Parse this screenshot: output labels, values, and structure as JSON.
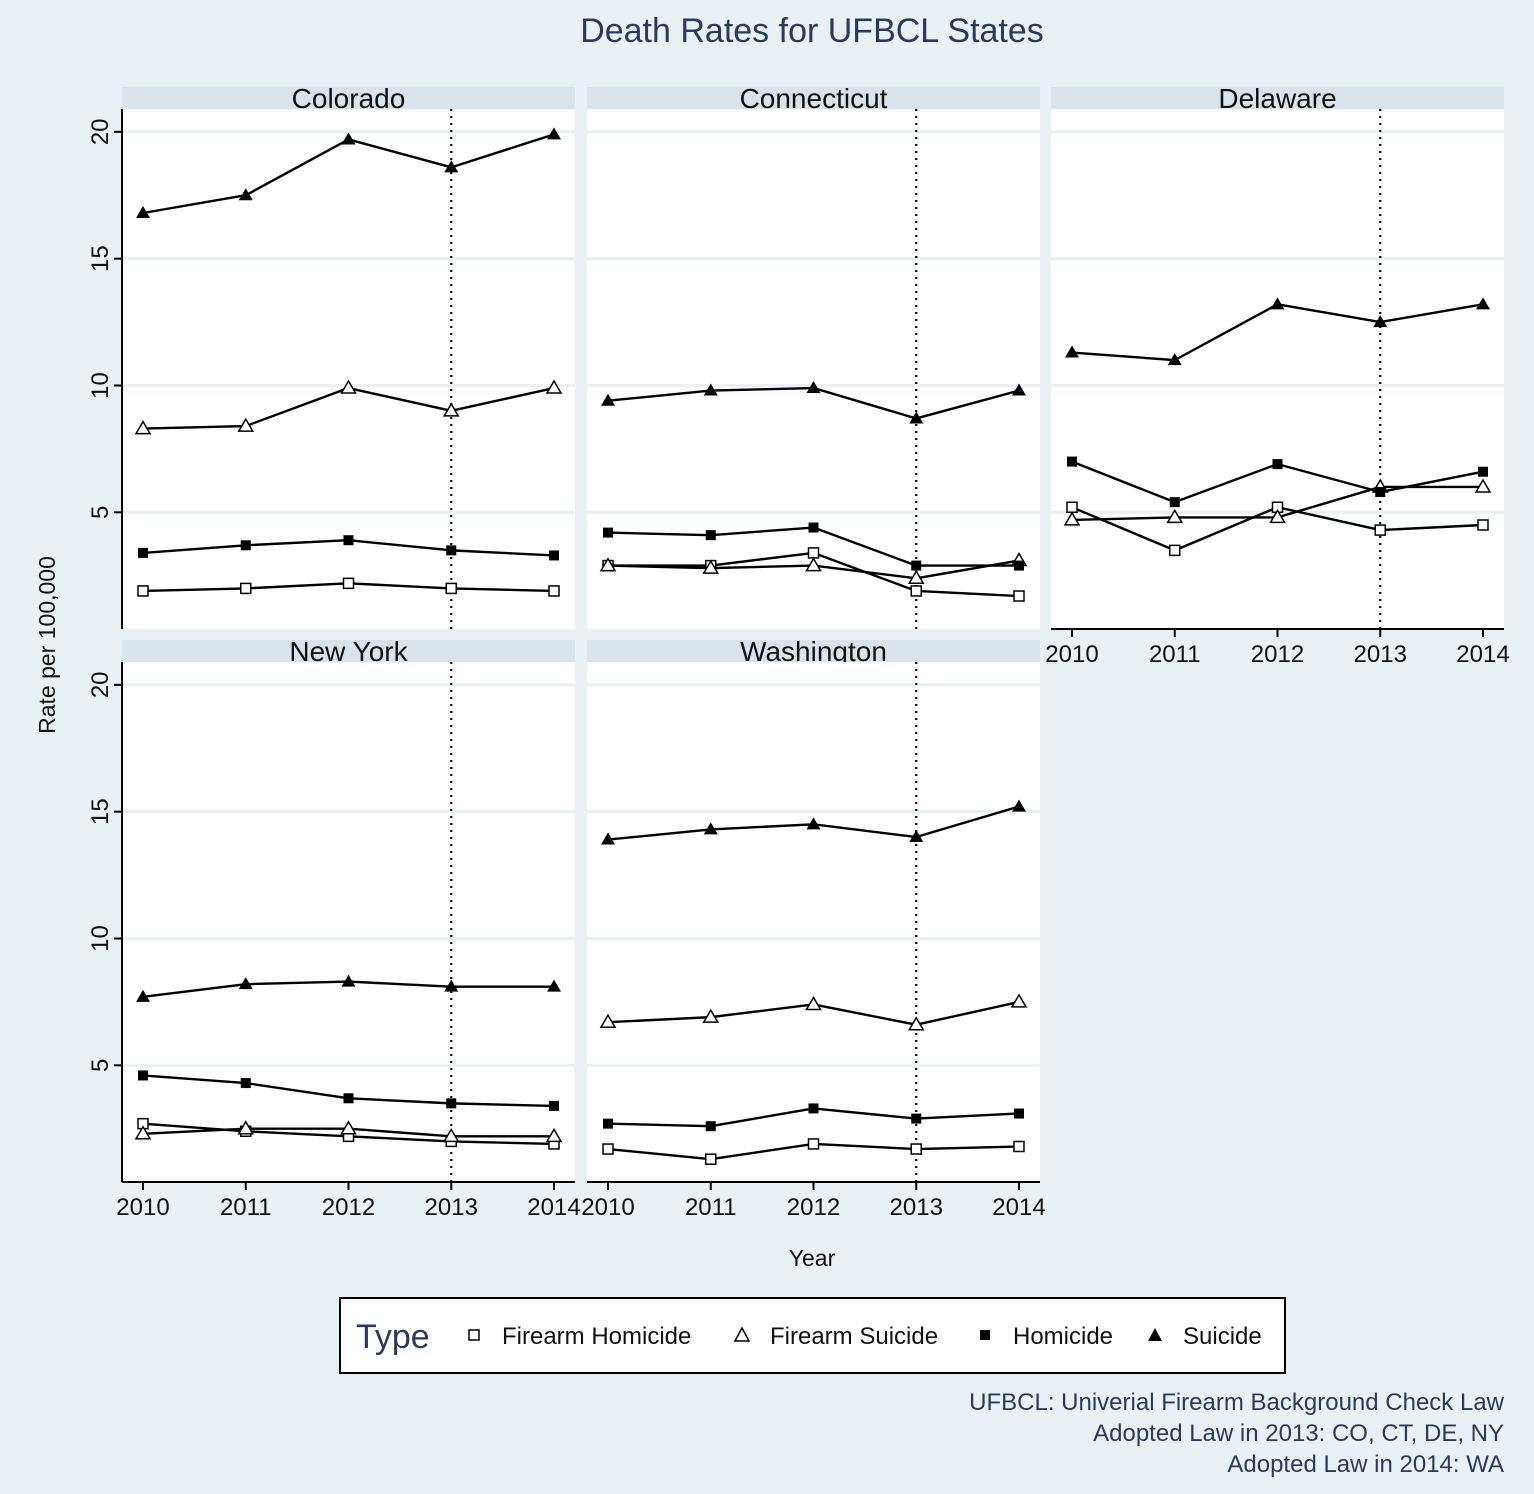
{
  "chart_data": {
    "type": "line",
    "title": "Death Rates for UFBCL States",
    "xlabel": "Year",
    "ylabel": "Rate per 100,000",
    "x": [
      2010,
      2011,
      2012,
      2013,
      2014
    ],
    "x_ticks": [
      "2010",
      "2011",
      "2012",
      "2013",
      "2014"
    ],
    "y_ticks": [
      "5",
      "10",
      "15",
      "20"
    ],
    "ylim": [
      0.4,
      20.9
    ],
    "grid": true,
    "reference_line_x": 2013,
    "legend": {
      "title": "Type",
      "position": "bottom",
      "items": [
        "Firearm Homicide",
        "Firearm Suicide",
        "Homicide",
        "Suicide"
      ]
    },
    "panels": [
      {
        "name": "Colorado",
        "series": [
          {
            "name": "Firearm Homicide",
            "marker": "hollow-square",
            "values": [
              1.9,
              2.0,
              2.2,
              2.0,
              1.9
            ]
          },
          {
            "name": "Firearm Suicide",
            "marker": "hollow-triangle",
            "values": [
              8.3,
              8.4,
              9.9,
              9.0,
              9.9
            ]
          },
          {
            "name": "Homicide",
            "marker": "filled-square",
            "values": [
              3.4,
              3.7,
              3.9,
              3.5,
              3.3
            ]
          },
          {
            "name": "Suicide",
            "marker": "filled-triangle",
            "values": [
              16.8,
              17.5,
              19.7,
              18.6,
              19.9
            ]
          }
        ]
      },
      {
        "name": "Connecticut",
        "series": [
          {
            "name": "Firearm Homicide",
            "marker": "hollow-square",
            "values": [
              2.9,
              2.9,
              3.4,
              1.9,
              1.7
            ]
          },
          {
            "name": "Firearm Suicide",
            "marker": "hollow-triangle",
            "values": [
              2.9,
              2.8,
              2.9,
              2.4,
              3.1
            ]
          },
          {
            "name": "Homicide",
            "marker": "filled-square",
            "values": [
              4.2,
              4.1,
              4.4,
              2.9,
              2.9
            ]
          },
          {
            "name": "Suicide",
            "marker": "filled-triangle",
            "values": [
              9.4,
              9.8,
              9.9,
              8.7,
              9.8
            ]
          }
        ]
      },
      {
        "name": "Delaware",
        "series": [
          {
            "name": "Firearm Homicide",
            "marker": "hollow-square",
            "values": [
              5.2,
              3.5,
              5.2,
              4.3,
              4.5
            ]
          },
          {
            "name": "Firearm Suicide",
            "marker": "hollow-triangle",
            "values": [
              4.7,
              4.8,
              4.8,
              6.0,
              6.0
            ]
          },
          {
            "name": "Homicide",
            "marker": "filled-square",
            "values": [
              7.0,
              5.4,
              6.9,
              5.8,
              6.6
            ]
          },
          {
            "name": "Suicide",
            "marker": "filled-triangle",
            "values": [
              11.3,
              11.0,
              13.2,
              12.5,
              13.2
            ]
          }
        ]
      },
      {
        "name": "New York",
        "series": [
          {
            "name": "Firearm Homicide",
            "marker": "hollow-square",
            "values": [
              2.7,
              2.4,
              2.2,
              2.0,
              1.9
            ]
          },
          {
            "name": "Firearm Suicide",
            "marker": "hollow-triangle",
            "values": [
              2.3,
              2.5,
              2.5,
              2.2,
              2.2
            ]
          },
          {
            "name": "Homicide",
            "marker": "filled-square",
            "values": [
              4.6,
              4.3,
              3.7,
              3.5,
              3.4
            ]
          },
          {
            "name": "Suicide",
            "marker": "filled-triangle",
            "values": [
              7.7,
              8.2,
              8.3,
              8.1,
              8.1
            ]
          }
        ]
      },
      {
        "name": "Washington",
        "series": [
          {
            "name": "Firearm Homicide",
            "marker": "hollow-square",
            "values": [
              1.7,
              1.3,
              1.9,
              1.7,
              1.8
            ]
          },
          {
            "name": "Firearm Suicide",
            "marker": "hollow-triangle",
            "values": [
              6.7,
              6.9,
              7.4,
              6.6,
              7.5
            ]
          },
          {
            "name": "Homicide",
            "marker": "filled-square",
            "values": [
              2.7,
              2.6,
              3.3,
              2.9,
              3.1
            ]
          },
          {
            "name": "Suicide",
            "marker": "filled-triangle",
            "values": [
              13.9,
              14.3,
              14.5,
              14.0,
              15.2
            ]
          }
        ]
      }
    ],
    "notes": [
      "UFBCL: Univerial Firearm Background Check Law",
      "Adopted Law in 2013: CO, CT, DE, NY",
      "Adopted Law in 2014: WA"
    ]
  }
}
